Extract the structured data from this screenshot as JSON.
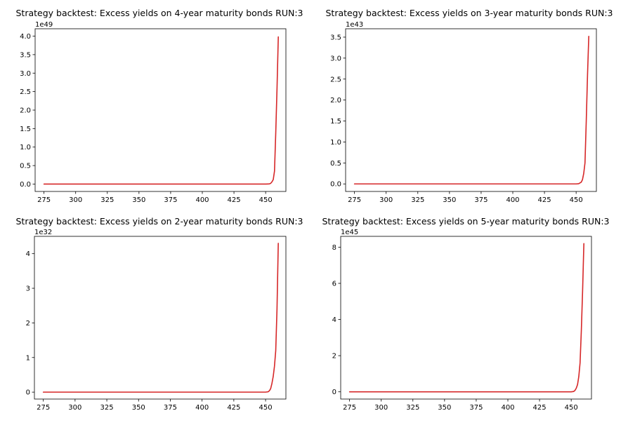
{
  "chart_data": [
    {
      "type": "line",
      "title": "Strategy backtest: Excess yields on 4-year maturity bonds RUN:3",
      "offset_label": "1e49",
      "xlabel": "",
      "ylabel": "",
      "xlim": [
        268,
        466
      ],
      "ylim": [
        -0.2,
        4.2
      ],
      "xticks": [
        275,
        300,
        325,
        350,
        375,
        400,
        425,
        450
      ],
      "xtick_labels": [
        "275",
        "300",
        "325",
        "350",
        "375",
        "400",
        "425",
        "450"
      ],
      "yticks": [
        0,
        0.5,
        1.0,
        1.5,
        2.0,
        2.5,
        3.0,
        3.5,
        4.0
      ],
      "ytick_labels": [
        "0.0",
        "0.5",
        "1.0",
        "1.5",
        "2.0",
        "2.5",
        "3.0",
        "3.5",
        "4.0"
      ],
      "grid": false,
      "series": [
        {
          "color": "#d62728",
          "x": [
            275,
            300,
            350,
            400,
            450,
            453,
            454,
            455,
            456,
            457,
            458,
            459,
            460
          ],
          "y": [
            0,
            0,
            0,
            0,
            0,
            0.005,
            0.02,
            0.06,
            0.12,
            0.35,
            1.4,
            2.6,
            3.98
          ]
        }
      ]
    },
    {
      "type": "line",
      "title": "Strategy backtest: Excess yields on 3-year maturity bonds RUN:3",
      "offset_label": "1e43",
      "xlabel": "",
      "ylabel": "",
      "xlim": [
        268,
        466
      ],
      "ylim": [
        -0.18,
        3.7
      ],
      "xticks": [
        275,
        300,
        325,
        350,
        375,
        400,
        425,
        450
      ],
      "xtick_labels": [
        "275",
        "300",
        "325",
        "350",
        "375",
        "400",
        "425",
        "450"
      ],
      "yticks": [
        0,
        0.5,
        1.0,
        1.5,
        2.0,
        2.5,
        3.0,
        3.5
      ],
      "ytick_labels": [
        "0.0",
        "0.5",
        "1.0",
        "1.5",
        "2.0",
        "2.5",
        "3.0",
        "3.5"
      ],
      "grid": false,
      "series": [
        {
          "color": "#d62728",
          "x": [
            275,
            300,
            350,
            400,
            450,
            452,
            454,
            455,
            456,
            457,
            458,
            459,
            460
          ],
          "y": [
            0,
            0,
            0,
            0,
            0,
            0.005,
            0.04,
            0.1,
            0.25,
            0.5,
            1.5,
            2.6,
            3.52
          ]
        }
      ]
    },
    {
      "type": "line",
      "title": "Strategy backtest: Excess yields on 2-year maturity bonds RUN:3",
      "offset_label": "1e32",
      "xlabel": "",
      "ylabel": "",
      "xlim": [
        268,
        466
      ],
      "ylim": [
        -0.2,
        4.5
      ],
      "xticks": [
        275,
        300,
        325,
        350,
        375,
        400,
        425,
        450
      ],
      "xtick_labels": [
        "275",
        "300",
        "325",
        "350",
        "375",
        "400",
        "425",
        "450"
      ],
      "yticks": [
        0,
        1,
        2,
        3,
        4
      ],
      "ytick_labels": [
        "0",
        "1",
        "2",
        "3",
        "4"
      ],
      "grid": false,
      "series": [
        {
          "color": "#d62728",
          "x": [
            275,
            300,
            350,
            400,
            450,
            452,
            453,
            454,
            455,
            456,
            457,
            458,
            459,
            460
          ],
          "y": [
            0,
            0,
            0,
            0,
            0,
            0.01,
            0.04,
            0.1,
            0.25,
            0.45,
            0.75,
            1.2,
            2.4,
            4.3
          ]
        }
      ]
    },
    {
      "type": "line",
      "title": "Strategy backtest: Excess yields on 5-year maturity bonds RUN:3",
      "offset_label": "1e45",
      "xlabel": "",
      "ylabel": "",
      "xlim": [
        268,
        466
      ],
      "ylim": [
        -0.4,
        8.6
      ],
      "xticks": [
        275,
        300,
        325,
        350,
        375,
        400,
        425,
        450
      ],
      "xtick_labels": [
        "275",
        "300",
        "325",
        "350",
        "375",
        "400",
        "425",
        "450"
      ],
      "yticks": [
        0,
        2,
        4,
        6,
        8
      ],
      "ytick_labels": [
        "0",
        "2",
        "4",
        "6",
        "8"
      ],
      "grid": false,
      "series": [
        {
          "color": "#d62728",
          "x": [
            275,
            300,
            350,
            400,
            450,
            452,
            453,
            454,
            455,
            456,
            457,
            458,
            459,
            460
          ],
          "y": [
            0,
            0,
            0,
            0,
            0,
            0.02,
            0.08,
            0.2,
            0.4,
            0.85,
            1.6,
            3.4,
            5.6,
            8.2
          ]
        }
      ]
    }
  ]
}
